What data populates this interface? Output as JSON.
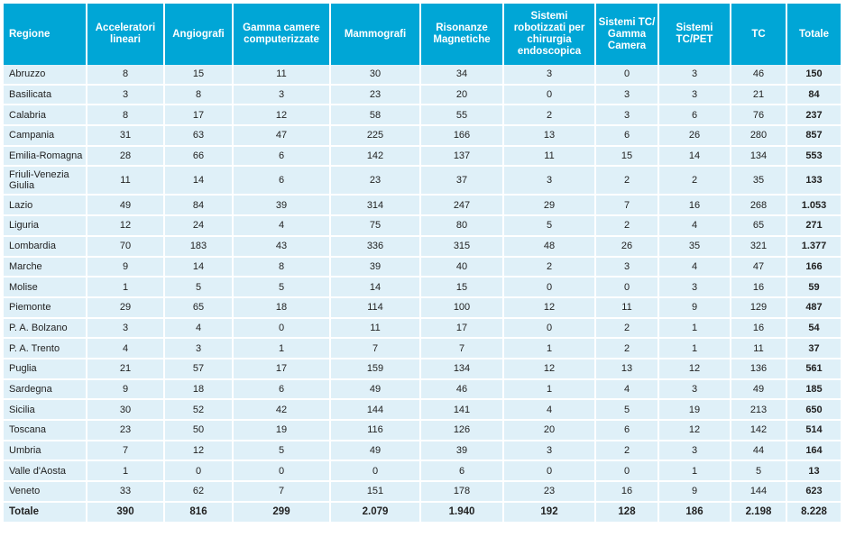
{
  "columns": [
    "Regione",
    "Acceleratori lineari",
    "Angiografi",
    "Gamma camere computerizzate",
    "Mammografi",
    "Risonanze Magnetiche",
    "Sistemi robotizzati per chirurgia endoscopica",
    "Sistemi TC/ Gamma Camera",
    "Sistemi TC/PET",
    "TC",
    "Totale"
  ],
  "rows": [
    [
      "Abruzzo",
      "8",
      "15",
      "11",
      "30",
      "34",
      "3",
      "0",
      "3",
      "46",
      "150"
    ],
    [
      "Basilicata",
      "3",
      "8",
      "3",
      "23",
      "20",
      "0",
      "3",
      "3",
      "21",
      "84"
    ],
    [
      "Calabria",
      "8",
      "17",
      "12",
      "58",
      "55",
      "2",
      "3",
      "6",
      "76",
      "237"
    ],
    [
      "Campania",
      "31",
      "63",
      "47",
      "225",
      "166",
      "13",
      "6",
      "26",
      "280",
      "857"
    ],
    [
      "Emilia-Romagna",
      "28",
      "66",
      "6",
      "142",
      "137",
      "11",
      "15",
      "14",
      "134",
      "553"
    ],
    [
      "Friuli-Venezia Giulia",
      "11",
      "14",
      "6",
      "23",
      "37",
      "3",
      "2",
      "2",
      "35",
      "133"
    ],
    [
      "Lazio",
      "49",
      "84",
      "39",
      "314",
      "247",
      "29",
      "7",
      "16",
      "268",
      "1.053"
    ],
    [
      "Liguria",
      "12",
      "24",
      "4",
      "75",
      "80",
      "5",
      "2",
      "4",
      "65",
      "271"
    ],
    [
      "Lombardia",
      "70",
      "183",
      "43",
      "336",
      "315",
      "48",
      "26",
      "35",
      "321",
      "1.377"
    ],
    [
      "Marche",
      "9",
      "14",
      "8",
      "39",
      "40",
      "2",
      "3",
      "4",
      "47",
      "166"
    ],
    [
      "Molise",
      "1",
      "5",
      "5",
      "14",
      "15",
      "0",
      "0",
      "3",
      "16",
      "59"
    ],
    [
      "Piemonte",
      "29",
      "65",
      "18",
      "114",
      "100",
      "12",
      "11",
      "9",
      "129",
      "487"
    ],
    [
      "P. A. Bolzano",
      "3",
      "4",
      "0",
      "11",
      "17",
      "0",
      "2",
      "1",
      "16",
      "54"
    ],
    [
      "P. A. Trento",
      "4",
      "3",
      "1",
      "7",
      "7",
      "1",
      "2",
      "1",
      "11",
      "37"
    ],
    [
      "Puglia",
      "21",
      "57",
      "17",
      "159",
      "134",
      "12",
      "13",
      "12",
      "136",
      "561"
    ],
    [
      "Sardegna",
      "9",
      "18",
      "6",
      "49",
      "46",
      "1",
      "4",
      "3",
      "49",
      "185"
    ],
    [
      "Sicilia",
      "30",
      "52",
      "42",
      "144",
      "141",
      "4",
      "5",
      "19",
      "213",
      "650"
    ],
    [
      "Toscana",
      "23",
      "50",
      "19",
      "116",
      "126",
      "20",
      "6",
      "12",
      "142",
      "514"
    ],
    [
      "Umbria",
      "7",
      "12",
      "5",
      "49",
      "39",
      "3",
      "2",
      "3",
      "44",
      "164"
    ],
    [
      "Valle d'Aosta",
      "1",
      "0",
      "0",
      "0",
      "6",
      "0",
      "0",
      "1",
      "5",
      "13"
    ],
    [
      "Veneto",
      "33",
      "62",
      "7",
      "151",
      "178",
      "23",
      "16",
      "9",
      "144",
      "623"
    ]
  ],
  "total_row": [
    "Totale",
    "390",
    "816",
    "299",
    "2.079",
    "1.940",
    "192",
    "128",
    "186",
    "2.198",
    "8.228"
  ],
  "colors": {
    "header_bg": "#00a6d6",
    "header_text": "#ffffff",
    "cell_bg": "#dff0f8",
    "cell_text": "#222222"
  }
}
